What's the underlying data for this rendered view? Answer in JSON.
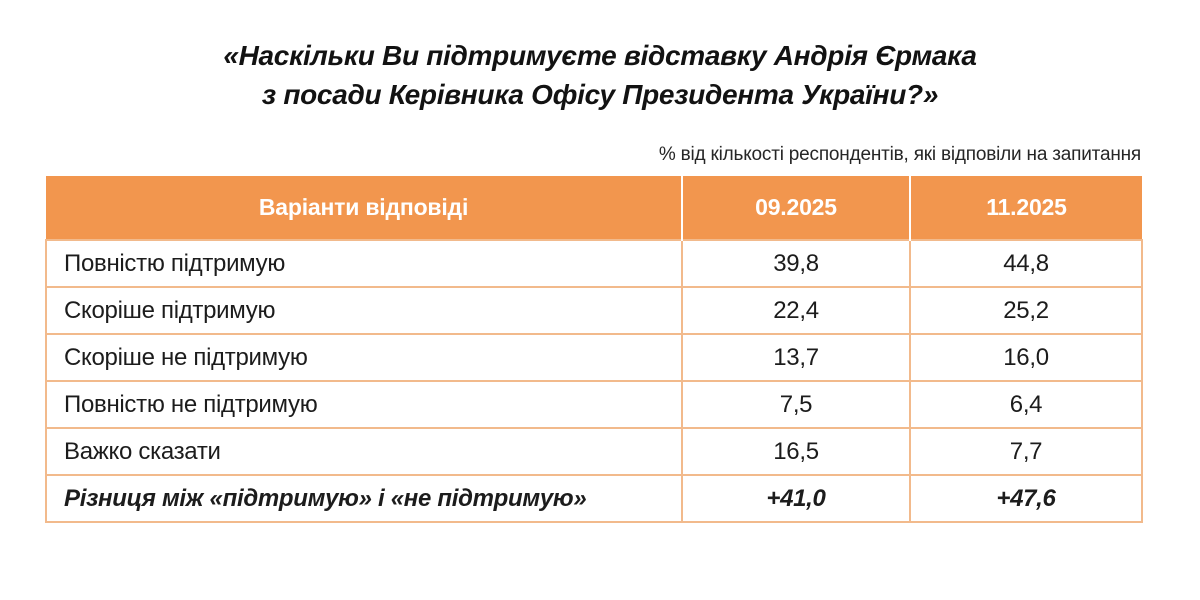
{
  "title": {
    "line1": "«Наскільки Ви підтримуєте відставку Андрія Єрмака",
    "line2": "з посади Керівника Офісу Президента України?»"
  },
  "subtitle": "% від кількості респондентів, які відповіли на запитання",
  "colors": {
    "header_bg": "#F2964E",
    "header_text": "#FFFFFF",
    "grid_border": "#F2BA8C",
    "body_text": "#1C1C1C"
  },
  "chart_data": {
    "type": "table",
    "title": "«Наскільки Ви підтримуєте відставку Андрія Єрмака з посади Керівника Офісу Президента України?»",
    "subtitle": "% від кількості респондентів, які відповіли на запитання",
    "columns": [
      "Варіанти відповіді",
      "09.2025",
      "11.2025"
    ],
    "rows": [
      {
        "label": "Повністю підтримую",
        "values": [
          "39,8",
          "44,8"
        ],
        "emphasis": false
      },
      {
        "label": "Скоріше підтримую",
        "values": [
          "22,4",
          "25,2"
        ],
        "emphasis": false
      },
      {
        "label": "Скоріше не підтримую",
        "values": [
          "13,7",
          "16,0"
        ],
        "emphasis": false
      },
      {
        "label": "Повністю не підтримую",
        "values": [
          "7,5",
          "6,4"
        ],
        "emphasis": false
      },
      {
        "label": "Важко сказати",
        "values": [
          "16,5",
          "7,7"
        ],
        "emphasis": false
      },
      {
        "label": "Різниця між «підтримую» і «не підтримую»",
        "values": [
          "+41,0",
          "+47,6"
        ],
        "emphasis": true
      }
    ]
  }
}
